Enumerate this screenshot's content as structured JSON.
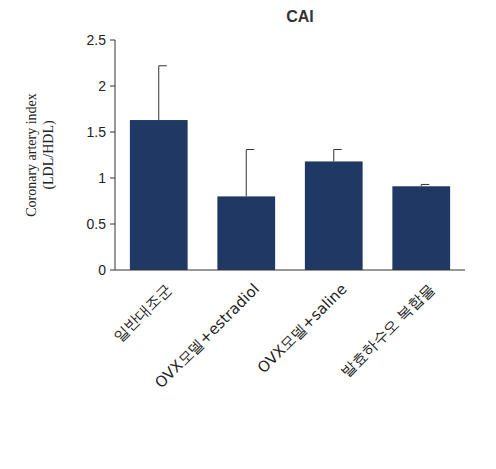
{
  "chart_data": {
    "type": "bar",
    "title": "CAI",
    "ylabel": [
      "Coronary artery index",
      "(LDL/HDL)"
    ],
    "categories": [
      "일반대조군",
      "OVX모델+estradiol",
      "OVX모델+saline",
      "발효하수오 복합물"
    ],
    "values": [
      1.63,
      0.8,
      1.18,
      0.91
    ],
    "errors": [
      0.59,
      0.51,
      0.13,
      0.02
    ],
    "color": "#1f3864",
    "ylim": [
      0,
      2.5
    ],
    "yticks": [
      0,
      0.5,
      1,
      1.5,
      2,
      2.5
    ],
    "grid": false
  }
}
